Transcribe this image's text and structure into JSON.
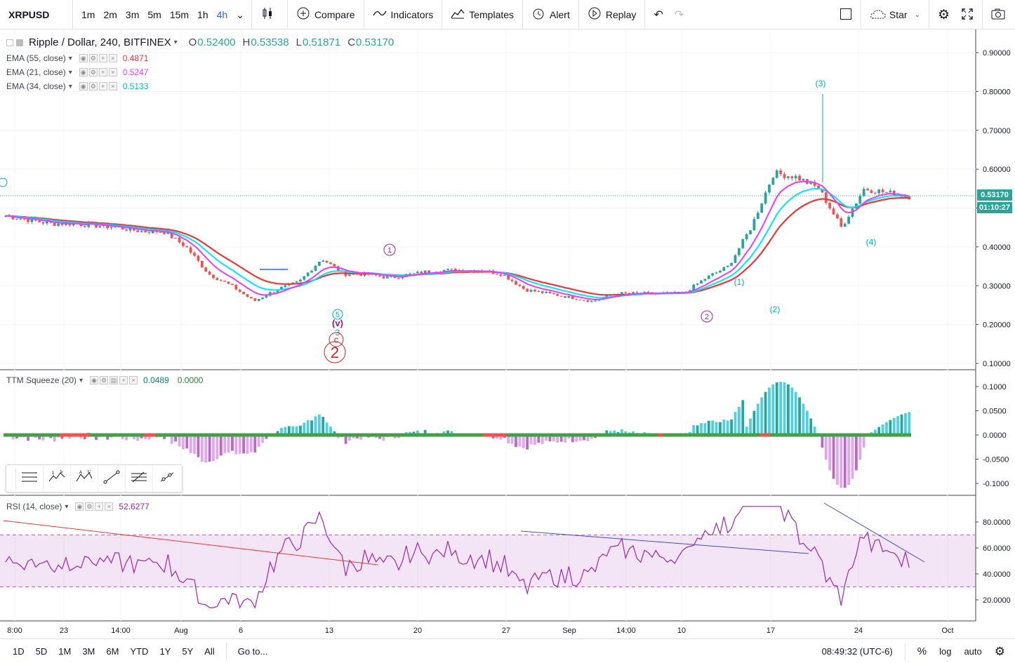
{
  "toolbar": {
    "symbol": "XRPUSD",
    "intervals": [
      "1m",
      "2m",
      "3m",
      "5m",
      "15m",
      "1h",
      "4h"
    ],
    "active_interval": "4h",
    "compare": "Compare",
    "indicators": "Indicators",
    "templates": "Templates",
    "alert": "Alert",
    "replay": "Replay",
    "star": "Star"
  },
  "main_legend": {
    "title": "Ripple / Dollar, 240, BITFINEX",
    "open_label": "O",
    "open": "0.52400",
    "high_label": "H",
    "high": "0.53538",
    "low_label": "L",
    "low": "0.51871",
    "close_label": "C",
    "close": "0.53170"
  },
  "ema_legends": [
    {
      "name": "EMA (55, close)",
      "value": "0.4871",
      "color": "#e53935"
    },
    {
      "name": "EMA (21, close)",
      "value": "0.5247",
      "color": "#e040fb"
    },
    {
      "name": "EMA (34, close)",
      "value": "0.5133",
      "color": "#00e5ff"
    }
  ],
  "ttm_legend": {
    "name": "TTM Squeeze (20)",
    "value1": "0.0489",
    "value2": "0.0000"
  },
  "rsi_legend": {
    "name": "RSI (14, close)",
    "value": "52.6277"
  },
  "price_axis": [
    "0.90000",
    "0.80000",
    "0.70000",
    "0.60000",
    "0.50000",
    "0.40000",
    "0.30000",
    "0.20000",
    "0.10000"
  ],
  "current_price": "0.53170",
  "countdown": "01:10:27",
  "ttm_axis": [
    "0.1000",
    "0.0500",
    "0.0000",
    "-0.0500",
    "-0.1000"
  ],
  "rsi_axis": [
    "80.0000",
    "60.0000",
    "40.0000",
    "20.0000"
  ],
  "time_axis": [
    "8:00",
    "23",
    "14:00",
    "Aug",
    "6",
    "13",
    "20",
    "27",
    "Sep",
    "14:00",
    "10",
    "17",
    "24",
    "Oct"
  ],
  "wave_labels": {
    "w1": "1",
    "w2": "2",
    "w5": "5",
    "wv": "v",
    "w3small": "3",
    "wc": "c",
    "wbig2": "2",
    "p1": "(1)",
    "p2": "(2)",
    "p3": "(3)",
    "p4": "(4)"
  },
  "bottom": {
    "ranges": [
      "1D",
      "5D",
      "1M",
      "3M",
      "6M",
      "YTD",
      "1Y",
      "5Y",
      "All"
    ],
    "goto": "Go to...",
    "time": "08:49:32 (UTC-6)",
    "percent": "%",
    "log": "log",
    "auto": "auto"
  },
  "chart_data": {
    "type": "line",
    "instrument": "Ripple / Dollar, 240, BITFINEX",
    "x": [
      "8:00",
      "23",
      "14:00",
      "Aug",
      "6",
      "13",
      "20",
      "27",
      "Sep",
      "14:00",
      "10",
      "17",
      "24",
      "Oct"
    ],
    "close_price_path": [
      0.48,
      0.47,
      0.46,
      0.46,
      0.455,
      0.45,
      0.44,
      0.44,
      0.4,
      0.33,
      0.3,
      0.26,
      0.29,
      0.31,
      0.37,
      0.33,
      0.33,
      0.32,
      0.33,
      0.34,
      0.34,
      0.34,
      0.33,
      0.29,
      0.28,
      0.27,
      0.26,
      0.28,
      0.28,
      0.28,
      0.28,
      0.32,
      0.35,
      0.45,
      0.59,
      0.58,
      0.55,
      0.45,
      0.55,
      0.54,
      0.53
    ],
    "series": [
      {
        "name": "EMA (55, close)",
        "last": 0.4871
      },
      {
        "name": "EMA (21, close)",
        "last": 0.5247
      },
      {
        "name": "EMA (34, close)",
        "last": 0.5133
      },
      {
        "name": "RSI (14, close)",
        "last": 52.6277
      },
      {
        "name": "TTM Squeeze (20)",
        "last": 0.0489
      }
    ],
    "ylim": [
      0.1,
      0.9
    ],
    "rsi_ylim": [
      10,
      95
    ],
    "ttm_ylim": [
      -0.11,
      0.12
    ]
  }
}
